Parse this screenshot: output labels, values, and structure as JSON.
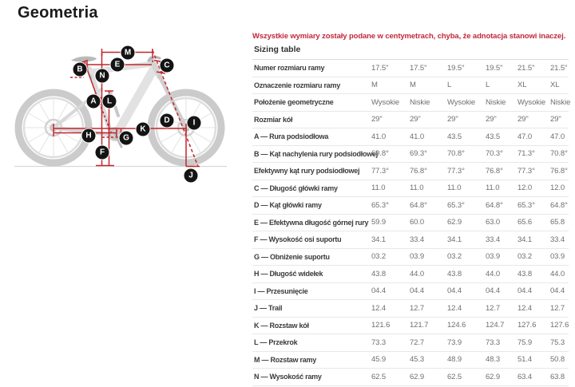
{
  "page": {
    "title": "Geometria",
    "note": "Wszystkie wymiary zostały podane w centymetrach, chyba, że adnotacja stanowi inaczej.",
    "table_title": "Sizing table"
  },
  "colors": {
    "dimension_red": "#c1272d",
    "note_red": "#c2283a",
    "badge_black": "#141414",
    "bike_gray": "#d6d6d6"
  },
  "diagram": {
    "badges": [
      "A",
      "B",
      "C",
      "D",
      "E",
      "F",
      "G",
      "H",
      "I",
      "J",
      "K",
      "L",
      "M",
      "N"
    ]
  },
  "table": {
    "rows": [
      {
        "label": "Numer rozmiaru ramy",
        "values": [
          "17.5\"",
          "17.5\"",
          "19.5\"",
          "19.5\"",
          "21.5\"",
          "21.5\""
        ]
      },
      {
        "label": "Oznaczenie rozmiaru ramy",
        "values": [
          "M",
          "M",
          "L",
          "L",
          "XL",
          "XL"
        ]
      },
      {
        "label": "Położenie geometryczne",
        "values": [
          "Wysokie",
          "Niskie",
          "Wysokie",
          "Niskie",
          "Wysokie",
          "Niskie"
        ]
      },
      {
        "label": "Rozmiar kół",
        "values": [
          "29\"",
          "29\"",
          "29\"",
          "29\"",
          "29\"",
          "29\""
        ]
      },
      {
        "label": "A — Rura podsiodłowa",
        "values": [
          "41.0",
          "41.0",
          "43.5",
          "43.5",
          "47.0",
          "47.0"
        ]
      },
      {
        "label": "B — Kąt nachylenia rury podsiodłowej",
        "values": [
          "69.8°",
          "69.3°",
          "70.8°",
          "70.3°",
          "71.3°",
          "70.8°"
        ]
      },
      {
        "label": "Efektywny kąt rury podsiodłowej",
        "values": [
          "77.3°",
          "76.8°",
          "77.3°",
          "76.8°",
          "77.3°",
          "76.8°"
        ]
      },
      {
        "label": "C — Długość główki ramy",
        "values": [
          "11.0",
          "11.0",
          "11.0",
          "11.0",
          "12.0",
          "12.0"
        ]
      },
      {
        "label": "D — Kąt główki ramy",
        "values": [
          "65.3°",
          "64.8°",
          "65.3°",
          "64.8°",
          "65.3°",
          "64.8°"
        ]
      },
      {
        "label": "E — Efektywna długość górnej rury",
        "values": [
          "59.9",
          "60.0",
          "62.9",
          "63.0",
          "65.6",
          "65.8"
        ]
      },
      {
        "label": "F — Wysokość osi suportu",
        "values": [
          "34.1",
          "33.4",
          "34.1",
          "33.4",
          "34.1",
          "33.4"
        ]
      },
      {
        "label": "G — Obniżenie suportu",
        "values": [
          "03.2",
          "03.9",
          "03.2",
          "03.9",
          "03.2",
          "03.9"
        ]
      },
      {
        "label": "H — Długość widełek",
        "values": [
          "43.8",
          "44.0",
          "43.8",
          "44.0",
          "43.8",
          "44.0"
        ]
      },
      {
        "label": "I — Przesunięcie",
        "values": [
          "04.4",
          "04.4",
          "04.4",
          "04.4",
          "04.4",
          "04.4"
        ]
      },
      {
        "label": "J — Trail",
        "values": [
          "12.4",
          "12.7",
          "12.4",
          "12.7",
          "12.4",
          "12.7"
        ]
      },
      {
        "label": "K — Rozstaw kół",
        "values": [
          "121.6",
          "121.7",
          "124.6",
          "124.7",
          "127.6",
          "127.6"
        ]
      },
      {
        "label": "L — Przekrok",
        "values": [
          "73.3",
          "72.7",
          "73.9",
          "73.3",
          "75.9",
          "75.3"
        ]
      },
      {
        "label": "M — Rozstaw ramy",
        "values": [
          "45.9",
          "45.3",
          "48.9",
          "48.3",
          "51.4",
          "50.8"
        ]
      },
      {
        "label": "N — Wysokość ramy",
        "values": [
          "62.5",
          "62.9",
          "62.5",
          "62.9",
          "63.4",
          "63.8"
        ]
      }
    ]
  }
}
